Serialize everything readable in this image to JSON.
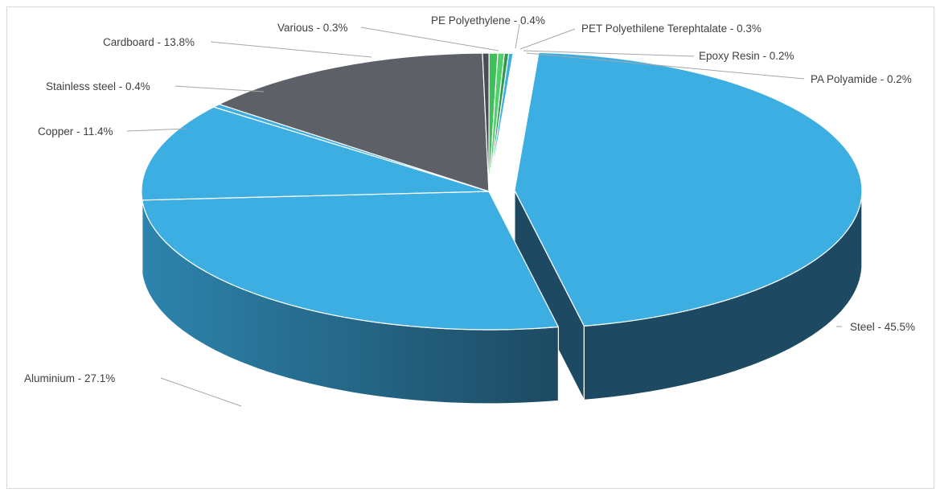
{
  "chart_data": {
    "type": "pie",
    "title": "",
    "three_d": true,
    "legend": "none",
    "slices": [
      {
        "label": "Steel",
        "value": 45.5,
        "display": "Steel - 45.5%",
        "color": "#3daee2",
        "exploded": true
      },
      {
        "label": "Aluminium",
        "value": 27.1,
        "display": "Aluminium - 27.1%",
        "color": "#3daee2",
        "exploded": false
      },
      {
        "label": "Copper",
        "value": 11.4,
        "display": "Copper - 11.4%",
        "color": "#3daee2",
        "exploded": false
      },
      {
        "label": "Stainless steel",
        "value": 0.4,
        "display": "Stainless steel - 0.4%",
        "color": "#3daee2",
        "exploded": false
      },
      {
        "label": "Cardboard",
        "value": 13.8,
        "display": "Cardboard - 13.8%",
        "color": "#5e6068",
        "exploded": false
      },
      {
        "label": "Various",
        "value": 0.3,
        "display": "Various - 0.3%",
        "color": "#4a4d54",
        "exploded": false
      },
      {
        "label": "PE Polyethylene",
        "value": 0.4,
        "display": "PE Polyethylene - 0.4%",
        "color": "#3fbf5a",
        "exploded": false
      },
      {
        "label": "PET Polyethilene Terephtalate",
        "value": 0.3,
        "display": "PET Polyethilene Terephtalate - 0.3%",
        "color": "#4fd06a",
        "exploded": false
      },
      {
        "label": "Epoxy Resin",
        "value": 0.2,
        "display": "Epoxy Resin - 0.2%",
        "color": "#2e9a48",
        "exploded": false
      },
      {
        "label": "PA Polyamide",
        "value": 0.2,
        "display": "PA Polyamide - 0.2%",
        "color": "#3daee2",
        "exploded": false
      }
    ]
  }
}
